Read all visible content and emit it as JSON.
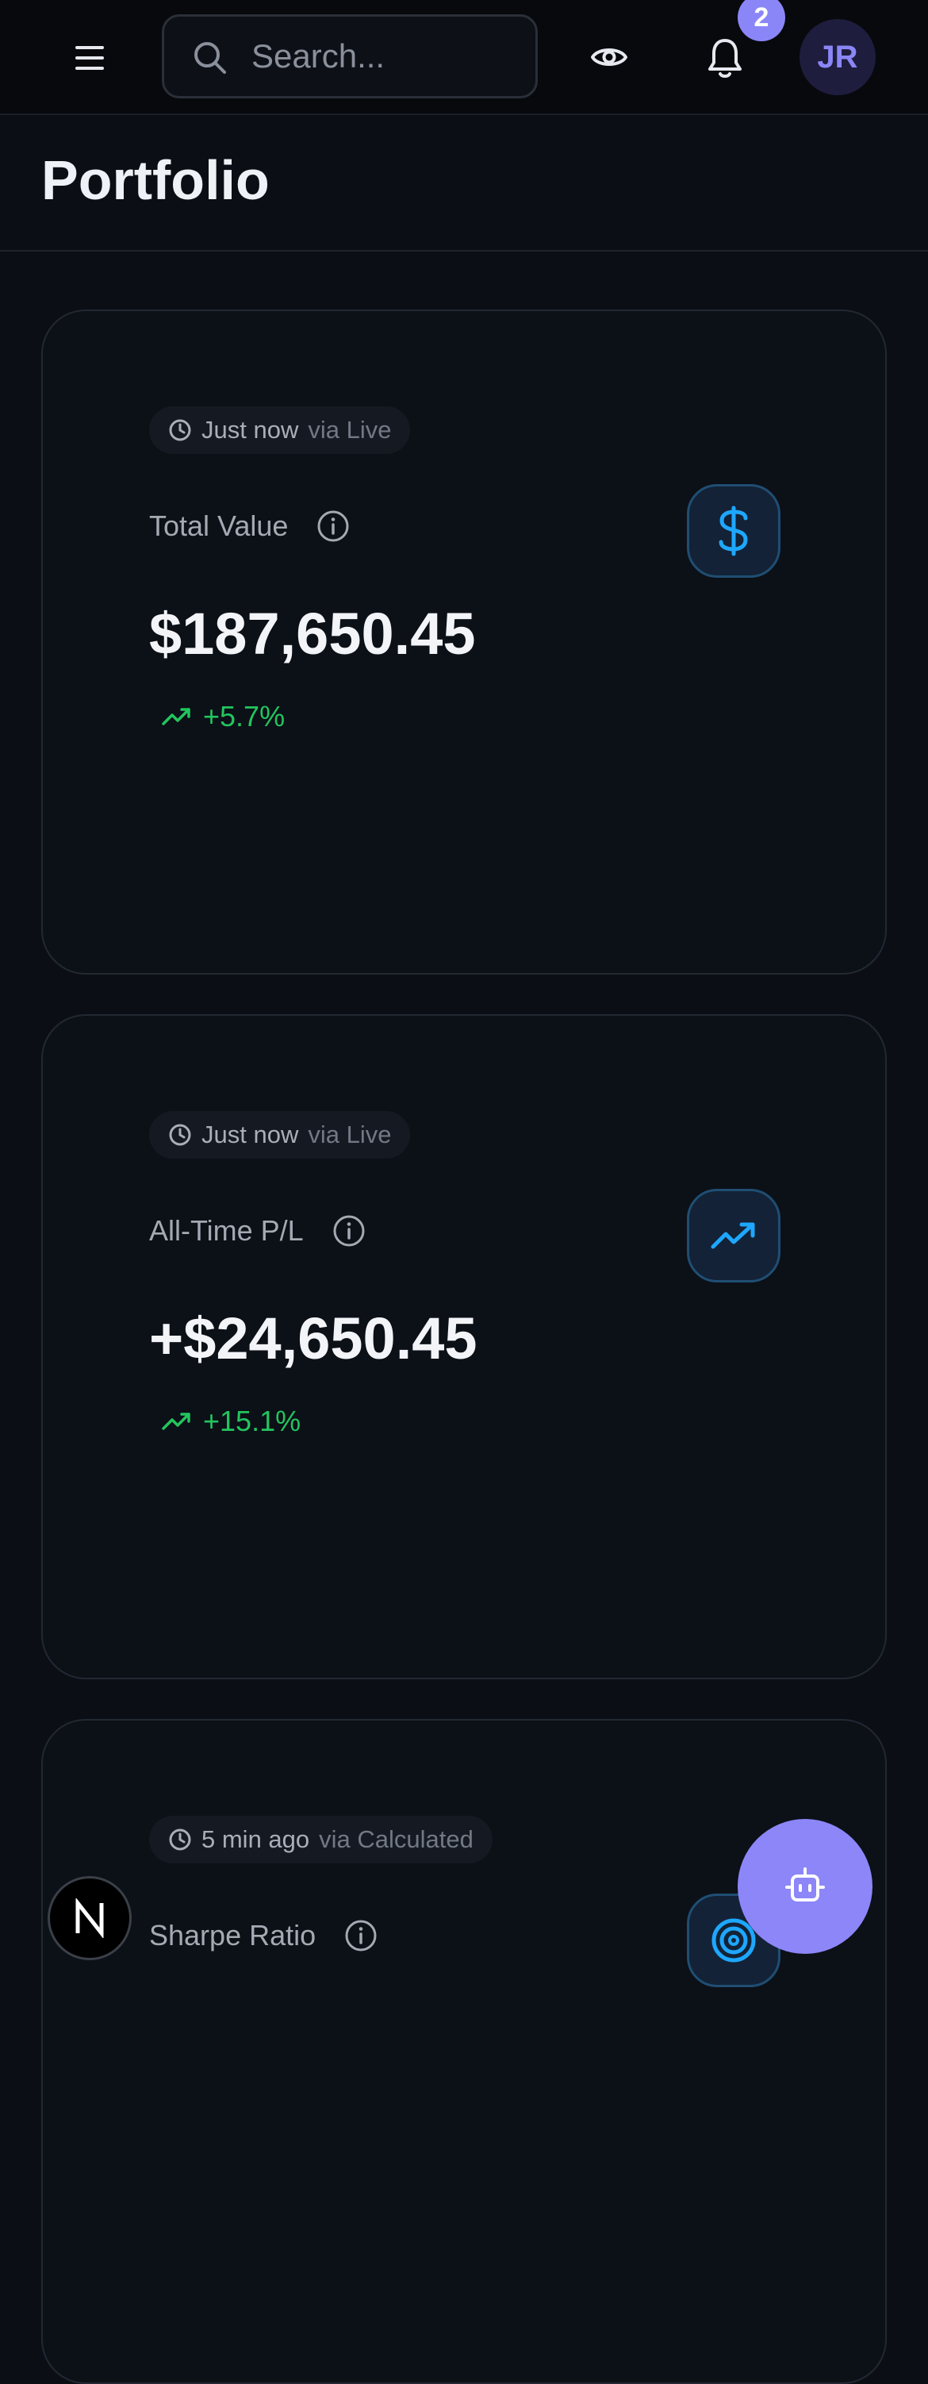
{
  "header": {
    "search_placeholder": "Search...",
    "notification_count": "2",
    "avatar_initials": "JR"
  },
  "page": {
    "title": "Portfolio"
  },
  "cards": [
    {
      "time": "Just now",
      "source": "via Live",
      "label": "Total Value",
      "value": "$187,650.45",
      "change": "+5.7%",
      "icon": "dollar-icon"
    },
    {
      "time": "Just now",
      "source": "via Live",
      "label": "All-Time P/L",
      "value": "+$24,650.45",
      "change": "+15.1%",
      "icon": "trending-up-icon"
    },
    {
      "time": "5 min ago",
      "source": "via Calculated",
      "label": "Sharpe Ratio",
      "icon": "target-icon"
    }
  ],
  "colors": {
    "accent": "#8b86f7",
    "positive": "#22c55e",
    "icon_blue": "#1ea7ff"
  }
}
